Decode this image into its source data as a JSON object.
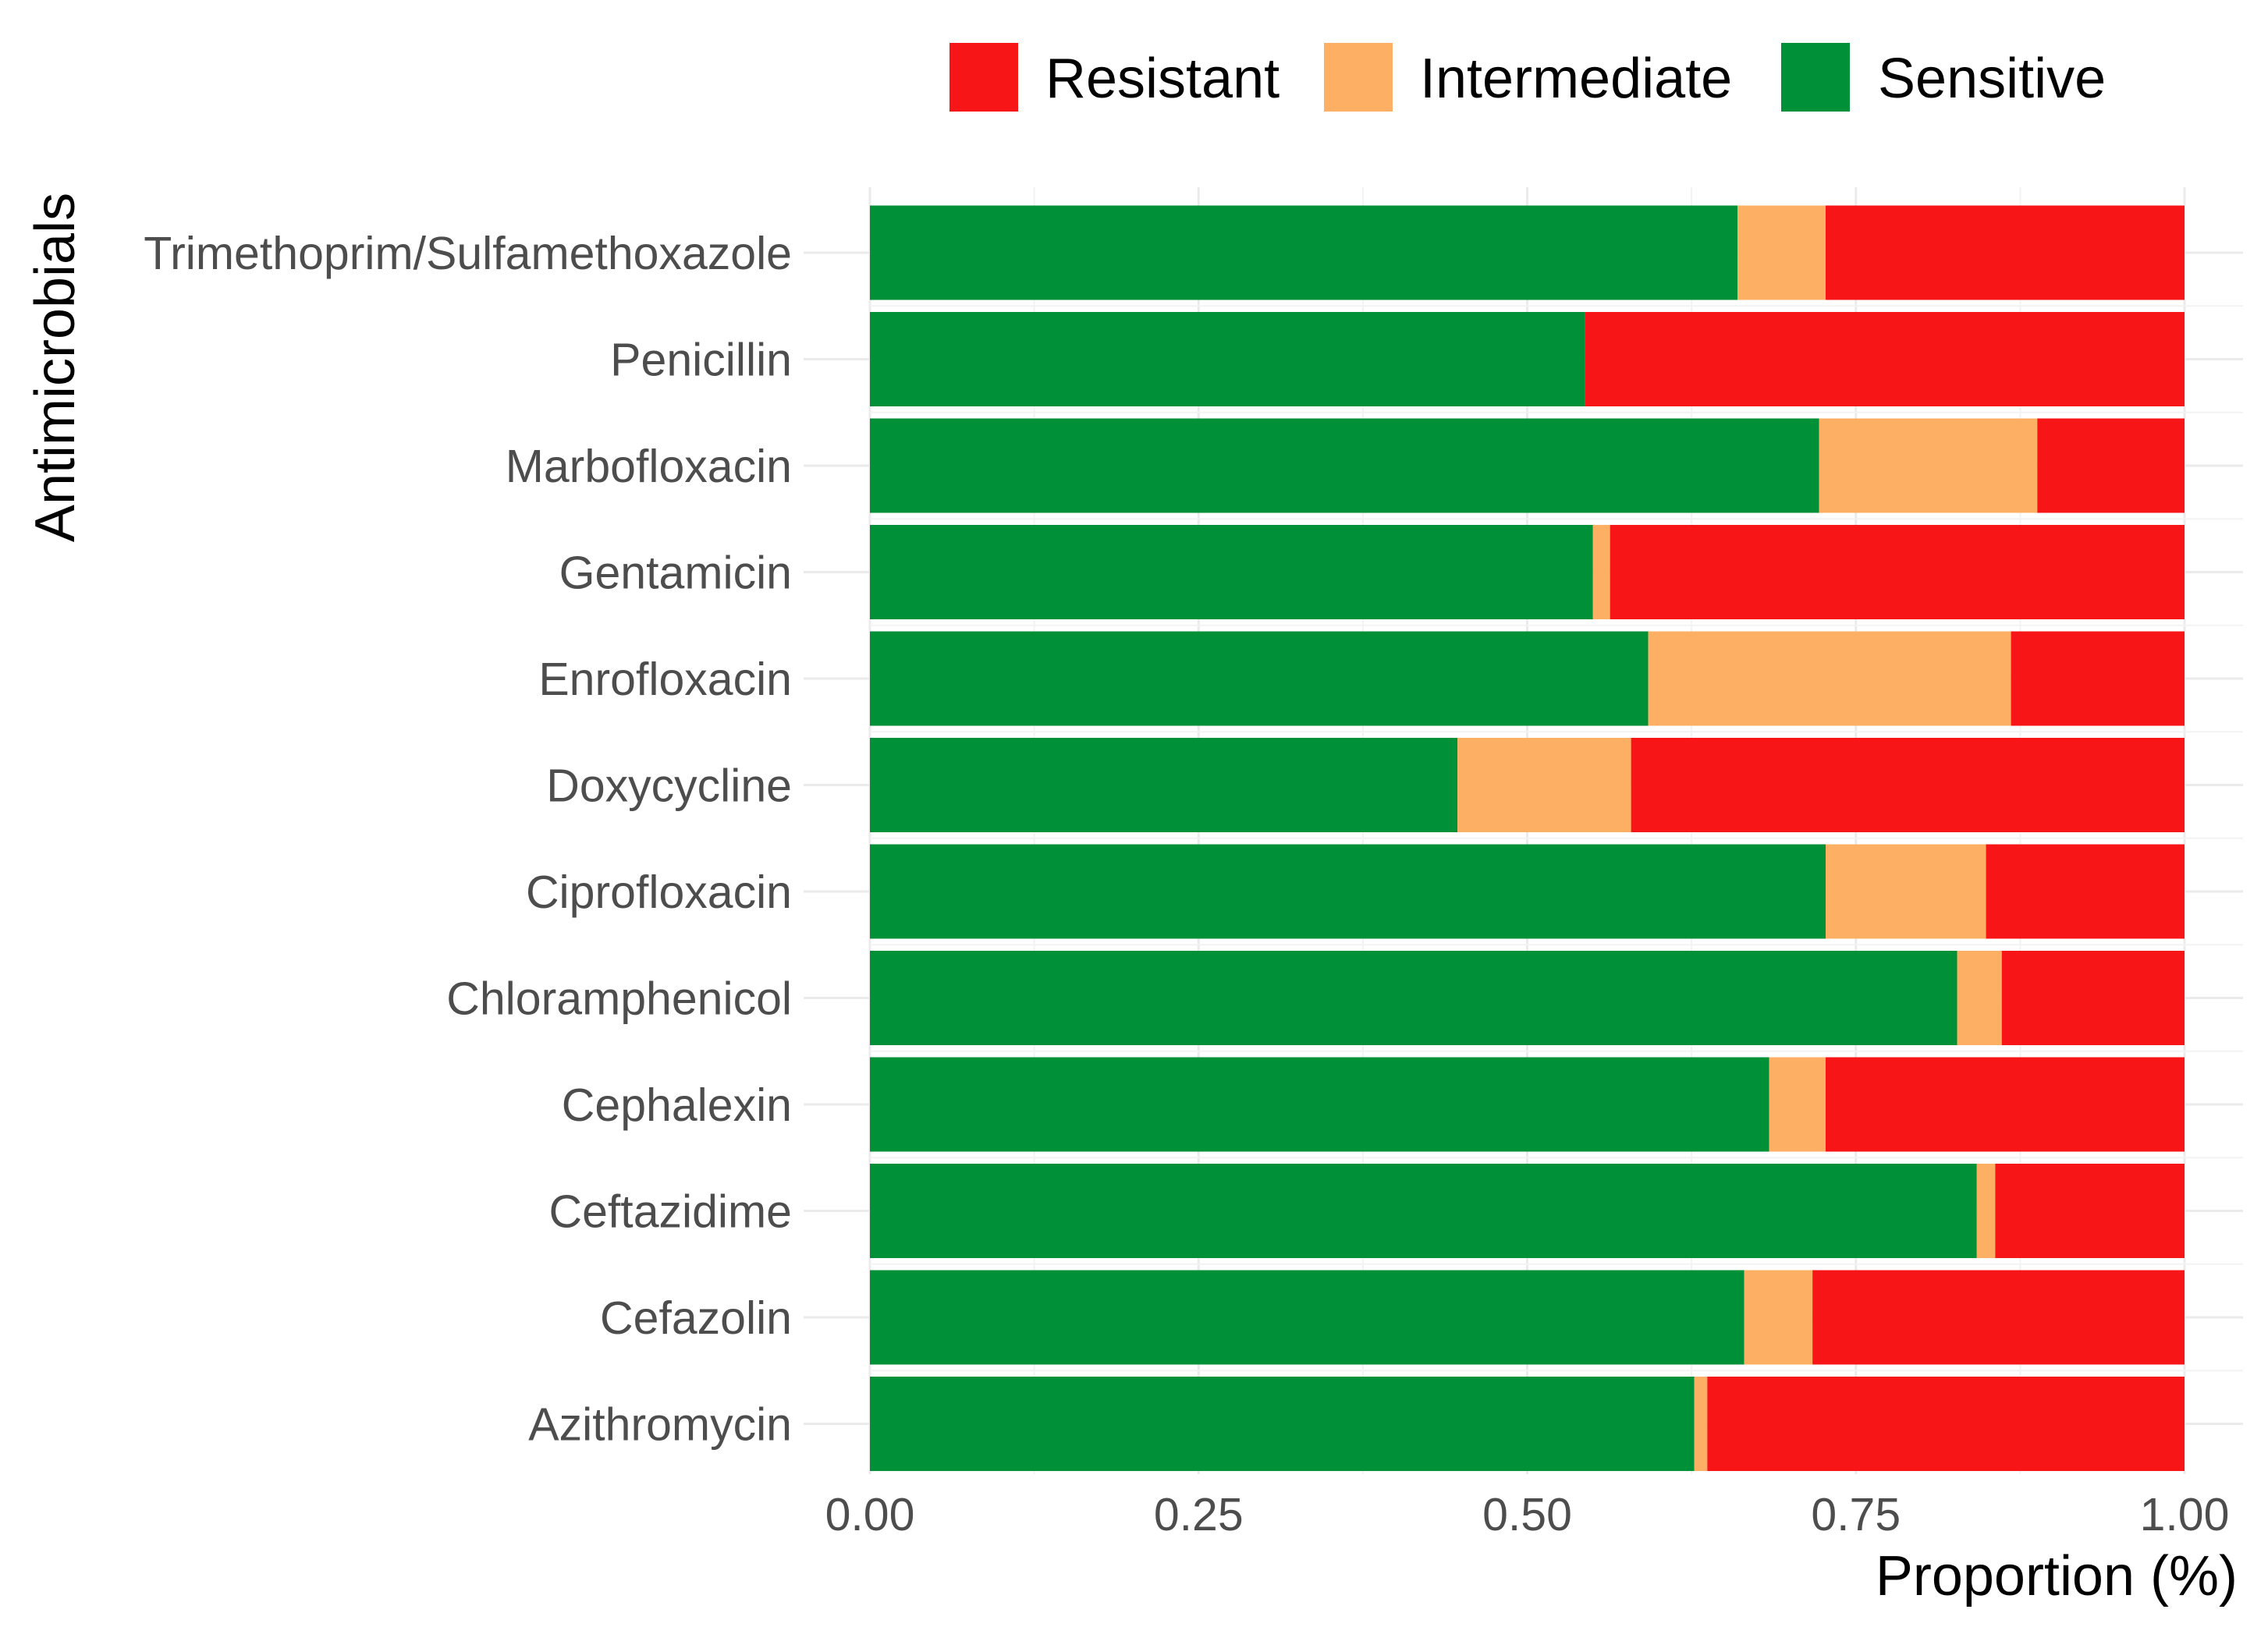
{
  "chart_data": {
    "type": "bar",
    "orientation": "horizontal",
    "stacked": true,
    "title": "",
    "xlabel": "Proportion (%)",
    "ylabel": "Antimicrobials",
    "xlim": [
      0,
      1
    ],
    "xticks": [
      "0.00",
      "0.25",
      "0.50",
      "0.75",
      "1.00"
    ],
    "grid": true,
    "legend_position": "top-right",
    "categories": [
      "Trimethoprim/Sulfamethoxazole",
      "Penicillin",
      "Marbofloxacin",
      "Gentamicin",
      "Enrofloxacin",
      "Doxycycline",
      "Ciprofloxacin",
      "Chloramphenicol",
      "Cephalexin",
      "Ceftazidime",
      "Cefazolin",
      "Azithromycin"
    ],
    "series": [
      {
        "name": "Sensitive",
        "color": "#009138",
        "values": [
          0.66,
          0.544,
          0.722,
          0.55,
          0.592,
          0.447,
          0.727,
          0.827,
          0.684,
          0.842,
          0.665,
          0.627
        ]
      },
      {
        "name": "Intermediate",
        "color": "#FDB063",
        "values": [
          0.067,
          0.0,
          0.166,
          0.013,
          0.276,
          0.132,
          0.122,
          0.034,
          0.043,
          0.014,
          0.052,
          0.01
        ]
      },
      {
        "name": "Resistant",
        "color": "#F81518",
        "values": [
          0.273,
          0.456,
          0.112,
          0.437,
          0.132,
          0.421,
          0.151,
          0.139,
          0.273,
          0.144,
          0.283,
          0.363
        ]
      }
    ],
    "legend_order": [
      "Resistant",
      "Intermediate",
      "Sensitive"
    ]
  }
}
